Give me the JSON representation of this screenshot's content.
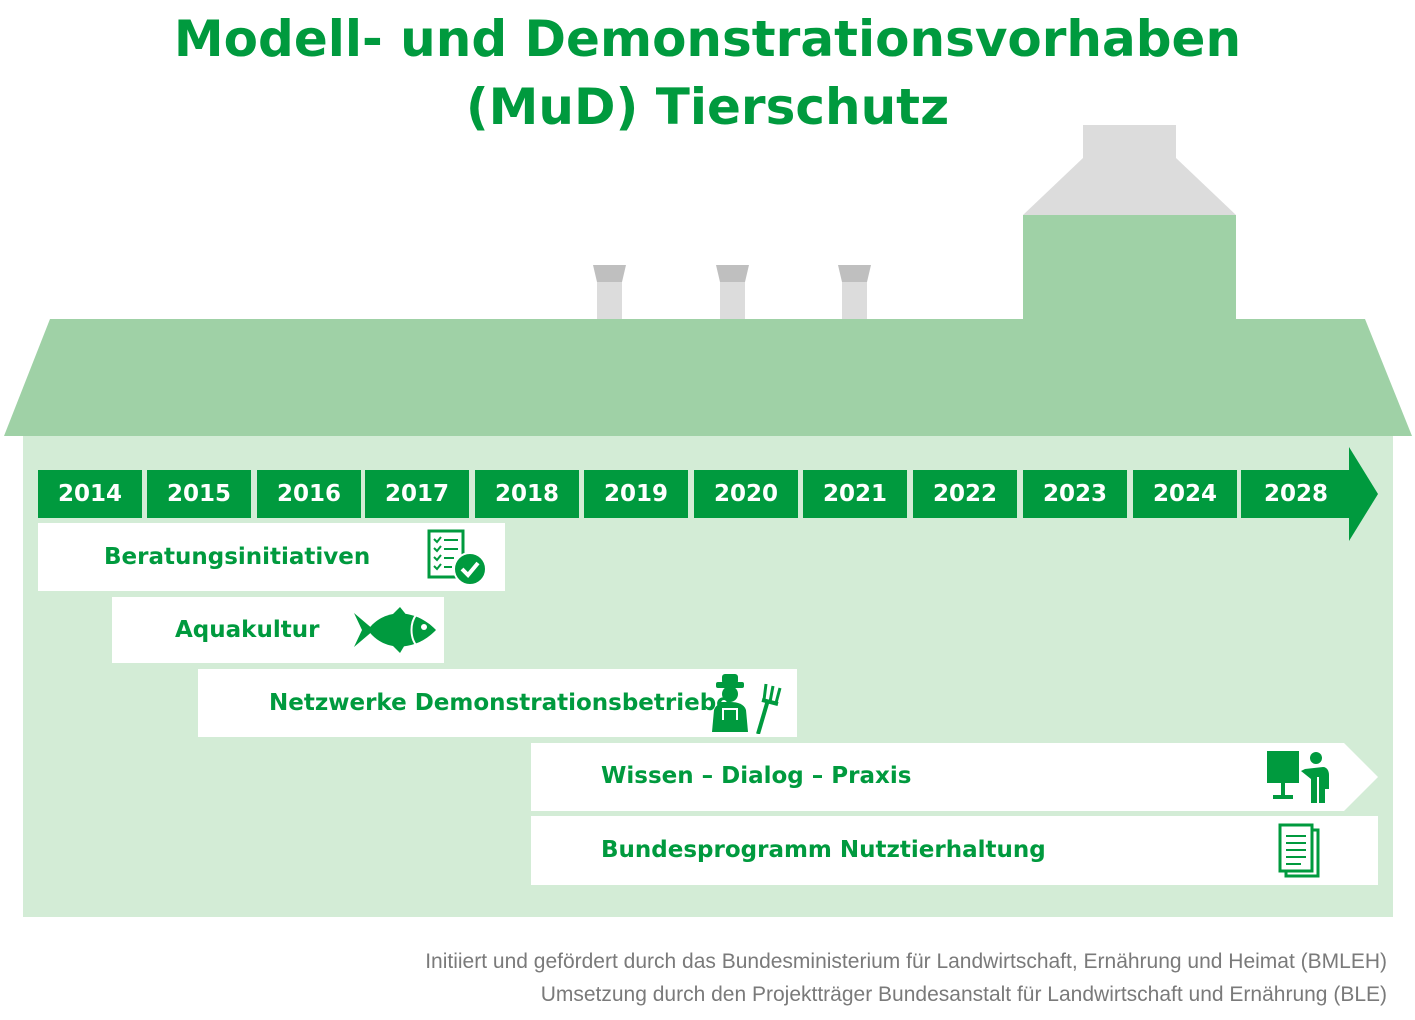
{
  "title": {
    "line1": "Modell- und Demonstrationsvorhaben",
    "line2": "(MuD) Tierschutz"
  },
  "colors": {
    "primary_green": "#009a3e",
    "roof_green": "#9fd1a6",
    "body_green": "#d3ecd6",
    "chimney_grey": "#dcdcdc"
  },
  "timeline": {
    "years": [
      "2014",
      "2015",
      "2016",
      "2017",
      "2018",
      "2019",
      "2020",
      "2021",
      "2022",
      "2023",
      "2024",
      "2028"
    ]
  },
  "programs": [
    {
      "label": "Beratungsinitiativen",
      "icon": "checklist-icon",
      "start": "2014",
      "end": "2018"
    },
    {
      "label": "Aquakultur",
      "icon": "fish-icon",
      "start": "2015",
      "end": "2017"
    },
    {
      "label": "Netzwerke Demonstrationsbetriebe",
      "icon": "farmer-icon",
      "start": "2016",
      "end": "2020"
    },
    {
      "label": "Wissen – Dialog – Praxis",
      "icon": "presenter-icon",
      "start": "2019",
      "end": "2028"
    },
    {
      "label": "Bundesprogramm Nutztierhaltung",
      "icon": "document-icon",
      "start": "2019",
      "end": "2028"
    }
  ],
  "footer": {
    "line1": "Initiiert und gefördert durch das Bundesministerium für Landwirtschaft, Ernährung und Heimat (BMLEH)",
    "line2": "Umsetzung durch den Projektträger Bundesanstalt für Landwirtschaft und Ernährung (BLE)"
  }
}
